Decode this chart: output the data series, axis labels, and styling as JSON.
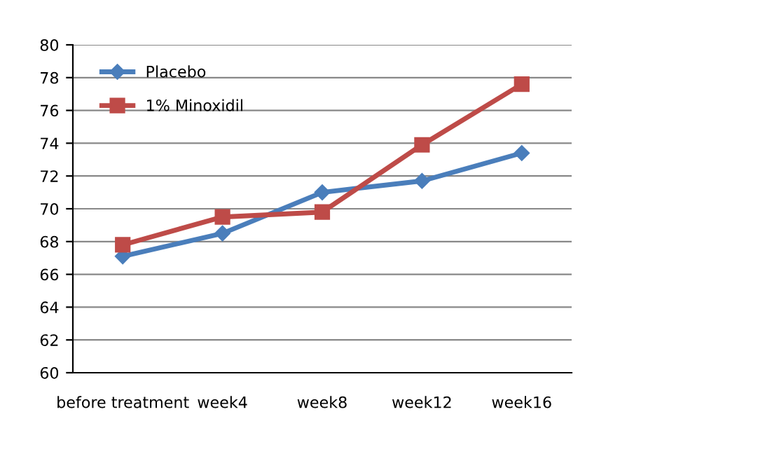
{
  "chart_data": {
    "type": "line",
    "categories": [
      "before treatment",
      "week4",
      "week8",
      "week12",
      "week16"
    ],
    "series": [
      {
        "name": "Placebo",
        "color": "#4a7ebb",
        "marker": "diamond",
        "values": [
          67.1,
          68.5,
          71.0,
          71.7,
          73.4
        ]
      },
      {
        "name": "1% Minoxidil",
        "color": "#be4b48",
        "marker": "square",
        "values": [
          67.8,
          69.5,
          69.8,
          73.9,
          77.6
        ]
      }
    ],
    "ylim": [
      60,
      80
    ],
    "yticks": [
      60,
      62,
      64,
      66,
      68,
      70,
      72,
      74,
      76,
      78,
      80
    ],
    "grid": "y",
    "legend": "top left",
    "line_style": "solid"
  }
}
